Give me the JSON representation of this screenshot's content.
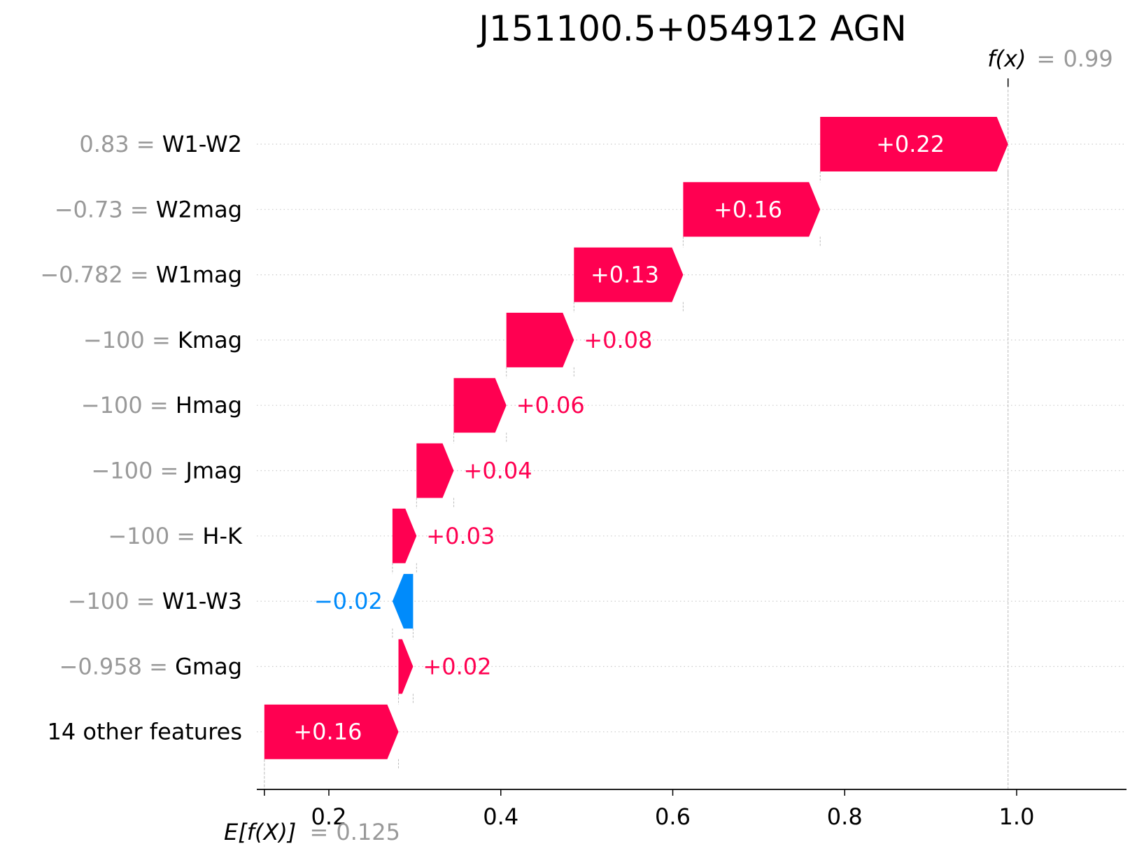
{
  "chart_data": {
    "type": "waterfall",
    "title": "J151100.5+054912 AGN",
    "base_value": 0.125,
    "base_value_label": "0.125",
    "base_label": "E[f(X)]",
    "output_value": 0.99,
    "output_value_label": "0.99",
    "output_label": "f(x)",
    "equals_sign": "=",
    "xlim": [
      0.105,
      1.13
    ],
    "xticks": [
      0.2,
      0.4,
      0.6,
      0.8,
      1.0
    ],
    "xtick_labels": [
      "0.2",
      "0.4",
      "0.6",
      "0.8",
      "1.0"
    ],
    "grid": "horizontal dotted per row",
    "colors": {
      "positive": "#ff0051",
      "negative": "#008bfb",
      "value_text": "#999999"
    },
    "features": [
      {
        "value": "0.83",
        "name": "W1-W2",
        "contribution": 0.2185,
        "label": "+0.22"
      },
      {
        "value": "−0.73",
        "name": "W2mag",
        "contribution": 0.1594,
        "label": "+0.16"
      },
      {
        "value": "−0.782",
        "name": "W1mag",
        "contribution": 0.127,
        "label": "+0.13"
      },
      {
        "value": "−100",
        "name": "Kmag",
        "contribution": 0.0786,
        "label": "+0.08"
      },
      {
        "value": "−100",
        "name": "Hmag",
        "contribution": 0.0612,
        "label": "+0.06"
      },
      {
        "value": "−100",
        "name": "Jmag",
        "contribution": 0.0433,
        "label": "+0.04"
      },
      {
        "value": "−100",
        "name": "H-K",
        "contribution": 0.028,
        "label": "+0.03"
      },
      {
        "value": "−100",
        "name": "W1-W3",
        "contribution": -0.024,
        "label": "−0.02"
      },
      {
        "value": "−0.958",
        "name": "Gmag",
        "contribution": 0.017,
        "label": "+0.02"
      },
      {
        "value": "",
        "name": "14 other features",
        "contribution": 0.156,
        "label": "+0.16"
      }
    ]
  }
}
